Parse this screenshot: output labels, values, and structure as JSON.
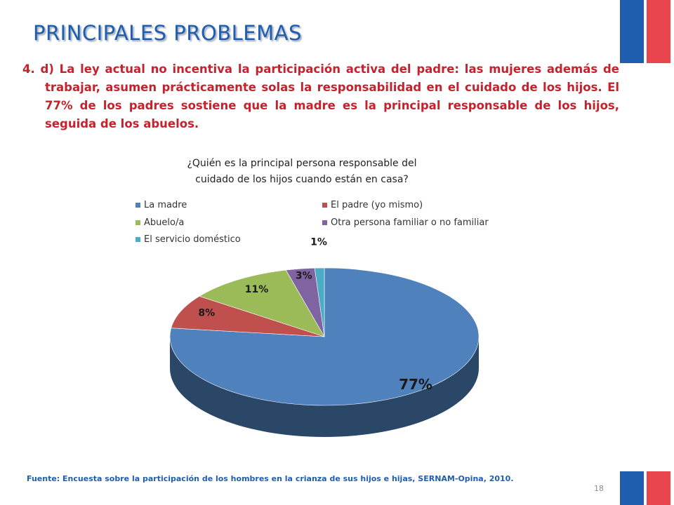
{
  "slide": {
    "title": "PRINCIPALES PROBLEMAS",
    "description": "4. d) La ley actual no incentiva la participación activa del padre: las mujeres además de trabajar, asumen prácticamente solas la responsabilidad en el cuidado de los hijos.  El 77% de los padres sostiene que la madre es la principal responsable de los hijos, seguida de los abuelos.",
    "source": "Fuente: Encuesta sobre la participación de los hombres en la crianza de sus hijos e hijas, SERNAM-Opina,  2010.",
    "page_number": "18"
  },
  "colors": {
    "flag_blue": "#1f5eae",
    "flag_red": "#e8454d",
    "title": "#1f5eae",
    "description": "#c4232d"
  },
  "chart_data": {
    "type": "pie",
    "title_line1": "¿Quién es la principal persona responsable del",
    "title_line2": "cuidado de los hijos cuando están en casa?",
    "legend_position": "top",
    "categories": [
      "La madre",
      "El padre (yo mismo)",
      "Abuelo/a",
      "Otra persona familiar o no familiar",
      "El servicio doméstico"
    ],
    "values": [
      77,
      8,
      11,
      3,
      1
    ],
    "labels": [
      "77%",
      "8%",
      "11%",
      "3%",
      "1%"
    ],
    "colors": [
      "#4f81bd",
      "#c0504d",
      "#9bbb59",
      "#8064a2",
      "#4bacc6"
    ]
  }
}
